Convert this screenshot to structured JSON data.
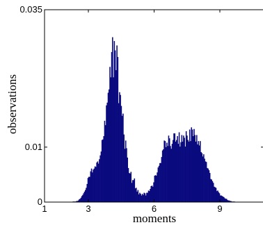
{
  "chart_data": {
    "type": "bar",
    "title": "",
    "xlabel": "moments",
    "ylabel": "observations",
    "xlim": [
      1,
      11
    ],
    "ylim": [
      0,
      0.035
    ],
    "grid": false,
    "x_ticks": [
      1,
      3,
      6,
      9
    ],
    "x_tick_labels": [
      "1",
      "3",
      "6",
      "9"
    ],
    "y_ticks": [
      0,
      0.01,
      0.035
    ],
    "y_tick_labels": [
      "0",
      "0.01",
      "0.035"
    ],
    "bar_color": "#0a0a7f",
    "bins": {
      "start": 2.0,
      "width": 0.04,
      "values": [
        0.0,
        0.0,
        0.0,
        0.0,
        0.0,
        0.0,
        0.0,
        0.0001,
        0.0001,
        0.0001,
        0.0001,
        0.0002,
        0.0002,
        0.0003,
        0.0005,
        0.0006,
        0.0008,
        0.0011,
        0.0013,
        0.0016,
        0.0019,
        0.0022,
        0.0026,
        0.0033,
        0.0044,
        0.0046,
        0.0046,
        0.0056,
        0.0061,
        0.0054,
        0.0059,
        0.0061,
        0.0065,
        0.0064,
        0.0072,
        0.0074,
        0.007,
        0.0078,
        0.0085,
        0.0092,
        0.0113,
        0.0114,
        0.012,
        0.0148,
        0.014,
        0.0176,
        0.0181,
        0.0199,
        0.0205,
        0.0246,
        0.0227,
        0.0273,
        0.03,
        0.0227,
        0.0293,
        0.0276,
        0.024,
        0.0285,
        0.0264,
        0.018,
        0.02,
        0.0195,
        0.0175,
        0.0157,
        0.0161,
        0.0123,
        0.0097,
        0.0112,
        0.0098,
        0.0081,
        0.0062,
        0.0053,
        0.0052,
        0.0055,
        0.0035,
        0.004,
        0.004,
        0.0043,
        0.0025,
        0.0026,
        0.0019,
        0.0022,
        0.0014,
        0.0017,
        0.0015,
        0.0012,
        0.0015,
        0.0013,
        0.0017,
        0.0016,
        0.0012,
        0.0017,
        0.0017,
        0.0021,
        0.002,
        0.0024,
        0.0029,
        0.003,
        0.0028,
        0.0036,
        0.0048,
        0.0049,
        0.0048,
        0.0054,
        0.0063,
        0.0066,
        0.0071,
        0.0071,
        0.0082,
        0.0094,
        0.0096,
        0.0112,
        0.0111,
        0.01,
        0.0108,
        0.0102,
        0.0121,
        0.0116,
        0.0102,
        0.0097,
        0.0106,
        0.0113,
        0.0125,
        0.0125,
        0.011,
        0.0113,
        0.012,
        0.0106,
        0.0127,
        0.0101,
        0.0109,
        0.0122,
        0.011,
        0.0121,
        0.0117,
        0.0101,
        0.0129,
        0.0121,
        0.0113,
        0.011,
        0.0132,
        0.0111,
        0.0136,
        0.0132,
        0.012,
        0.0133,
        0.0122,
        0.011,
        0.0122,
        0.0105,
        0.0111,
        0.0103,
        0.0111,
        0.0091,
        0.0089,
        0.0083,
        0.0087,
        0.0079,
        0.0074,
        0.0073,
        0.0062,
        0.0061,
        0.0058,
        0.0053,
        0.0042,
        0.0041,
        0.0038,
        0.0035,
        0.0028,
        0.0027,
        0.0026,
        0.002,
        0.0021,
        0.0018,
        0.0016,
        0.0012,
        0.0012,
        0.0011,
        0.001,
        0.0009,
        0.0007,
        0.0006,
        0.0006,
        0.0004,
        0.0003,
        0.0003,
        0.0002,
        0.0002,
        0.0001,
        0.0001,
        0.0001,
        0.0001,
        0.0,
        0.0,
        0.0,
        0.0,
        0.0,
        0.0,
        0.0,
        0.0,
        0.0,
        0.0,
        0.0,
        0.0,
        0.0,
        0.0,
        0.0,
        0.0,
        0.0,
        0.0
      ]
    }
  }
}
